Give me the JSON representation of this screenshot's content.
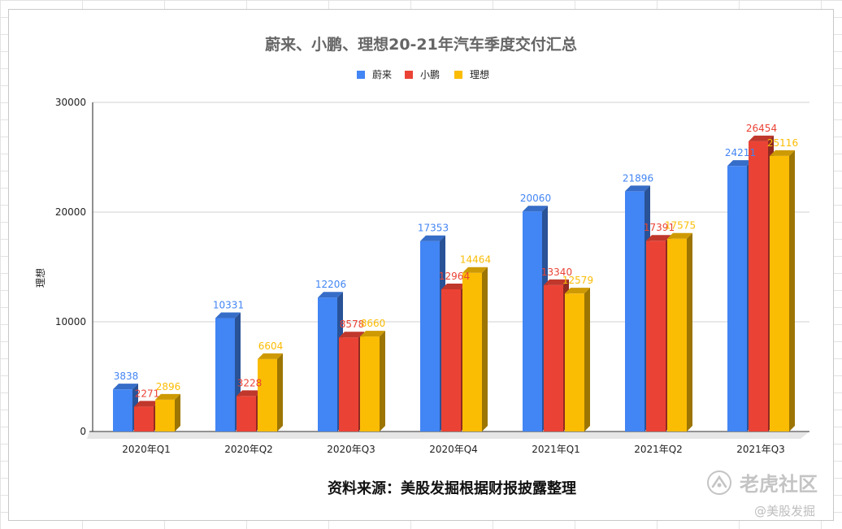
{
  "chart_data": {
    "type": "bar",
    "title": "蔚来、小鹏、理想20-21年汽车季度交付汇总",
    "xlabel": "",
    "ylabel": "理想",
    "ylim": [
      0,
      30000
    ],
    "yticks": [
      0,
      10000,
      20000,
      30000
    ],
    "grid": true,
    "legend_position": "top",
    "categories": [
      "2020年Q1",
      "2020年Q2",
      "2020年Q3",
      "2020年Q4",
      "2021年Q1",
      "2021年Q2",
      "2021年Q3"
    ],
    "series": [
      {
        "name": "蔚来",
        "color": "#4285f4",
        "values": [
          3838,
          10331,
          12206,
          17353,
          20060,
          21896,
          24211
        ]
      },
      {
        "name": "小鹏",
        "color": "#ea4335",
        "values": [
          2271,
          3228,
          8578,
          12964,
          13340,
          17391,
          26454
        ]
      },
      {
        "name": "理想",
        "color": "#fbbc04",
        "values": [
          2896,
          6604,
          8660,
          14464,
          12579,
          17575,
          25116
        ]
      }
    ]
  },
  "footer": {
    "source": "资料来源：美股发掘根据财报披露整理"
  },
  "watermark": {
    "brand": "老虎社区",
    "handle": "@美股发掘",
    "icon": "tiger-community-logo-icon"
  }
}
